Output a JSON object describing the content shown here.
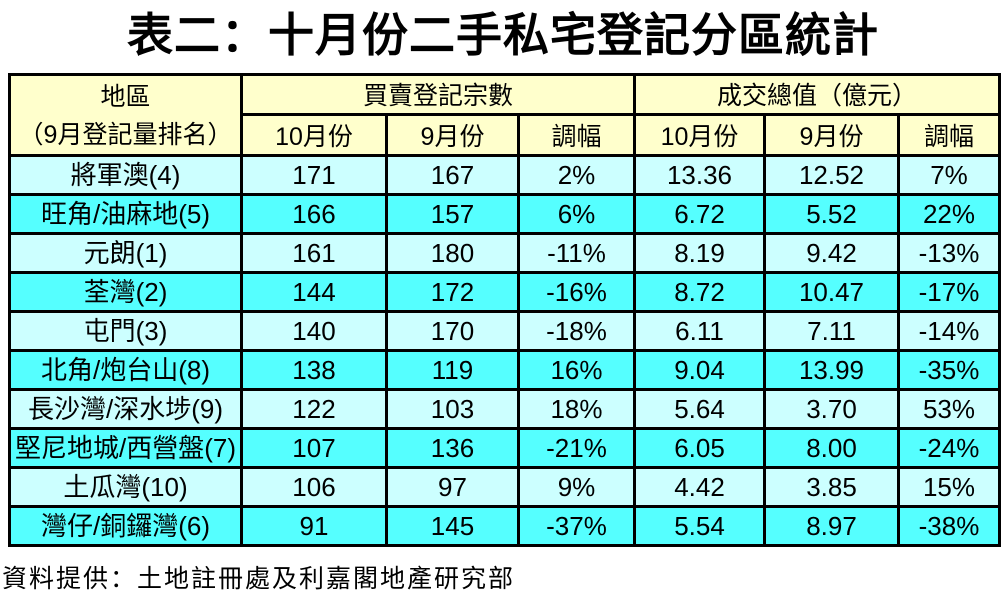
{
  "title": "表二：十月份二手私宅登記分區統計",
  "footer": "資料提供：土地註冊處及利嘉閣地產研究部",
  "colors": {
    "header_bg": "#FFFFCC",
    "row_light": "#CCFFFF",
    "row_bright": "#55FFFF",
    "border": "#000000",
    "text": "#000000"
  },
  "table": {
    "header": {
      "district_line1": "地區",
      "district_line2": "（9月登記量排名）",
      "group_count": "買賣登記宗數",
      "group_value": "成交總值（億元）",
      "sub": [
        "10月份",
        "9月份",
        "調幅"
      ]
    }
  },
  "chart_data": {
    "type": "table",
    "title": "表二：十月份二手私宅登記分區統計",
    "column_groups": [
      {
        "label": "地區（9月登記量排名）",
        "span": 1
      },
      {
        "label": "買賣登記宗數",
        "span": 3
      },
      {
        "label": "成交總值（億元）",
        "span": 3
      }
    ],
    "sub_columns": [
      "10月份",
      "9月份",
      "調幅"
    ],
    "rows": [
      [
        "將軍澳(4)",
        "171",
        "167",
        "2%",
        "13.36",
        "12.52",
        "7%"
      ],
      [
        "旺角/油麻地(5)",
        "166",
        "157",
        "6%",
        "6.72",
        "5.52",
        "22%"
      ],
      [
        "元朗(1)",
        "161",
        "180",
        "-11%",
        "8.19",
        "9.42",
        "-13%"
      ],
      [
        "荃灣(2)",
        "144",
        "172",
        "-16%",
        "8.72",
        "10.47",
        "-17%"
      ],
      [
        "屯門(3)",
        "140",
        "170",
        "-18%",
        "6.11",
        "7.11",
        "-14%"
      ],
      [
        "北角/炮台山(8)",
        "138",
        "119",
        "16%",
        "9.04",
        "13.99",
        "-35%"
      ],
      [
        "長沙灣/深水埗(9)",
        "122",
        "103",
        "18%",
        "5.64",
        "3.70",
        "53%"
      ],
      [
        "堅尼地城/西營盤(7)",
        "107",
        "136",
        "-21%",
        "6.05",
        "8.00",
        "-24%"
      ],
      [
        "土瓜灣(10)",
        "106",
        "97",
        "9%",
        "4.42",
        "3.85",
        "15%"
      ],
      [
        "灣仔/銅鑼灣(6)",
        "91",
        "145",
        "-37%",
        "5.54",
        "8.97",
        "-38%"
      ]
    ]
  }
}
